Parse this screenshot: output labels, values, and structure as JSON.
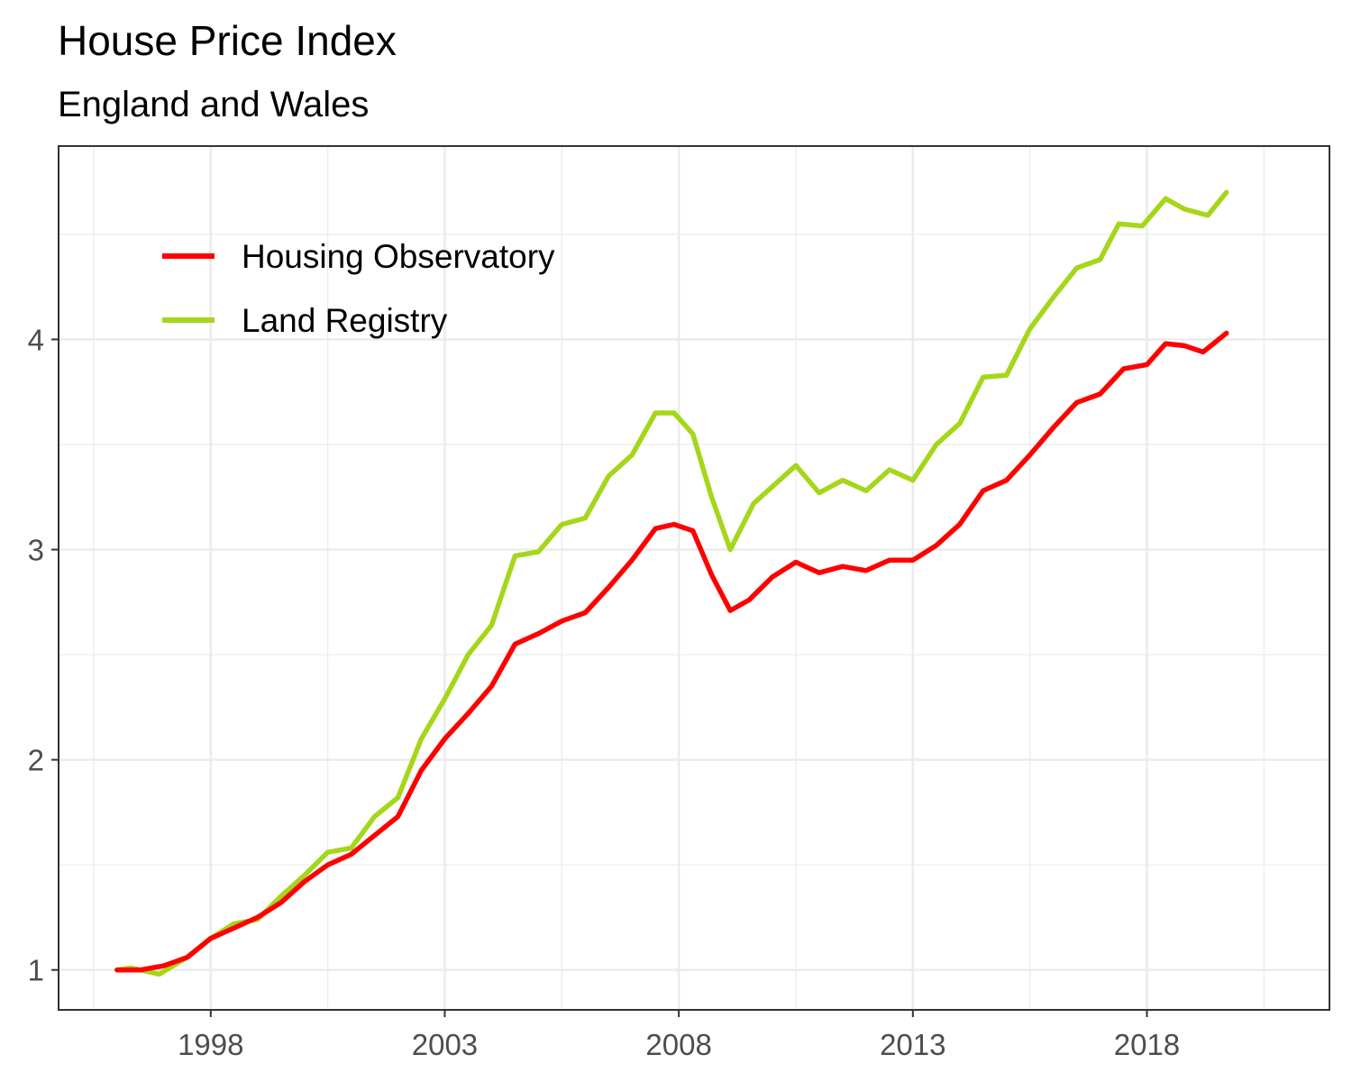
{
  "chart_data": {
    "type": "line",
    "title": "House Price Index",
    "subtitle": "England and Wales",
    "xlabel": "",
    "ylabel": "",
    "xlim": [
      1994.75,
      2021.9
    ],
    "ylim": [
      0.81,
      4.92
    ],
    "x_ticks": [
      "1998",
      "2003",
      "2008",
      "2013",
      "2018"
    ],
    "y_ticks": [
      "1",
      "2",
      "3",
      "4"
    ],
    "grid": true,
    "legend_position": "top-left",
    "colors": {
      "housing": "#ff0000",
      "land": "#a6d61a"
    },
    "series": [
      {
        "name": "Housing Observatory",
        "color": "#ff0000",
        "points": [
          [
            1996.0,
            1.0
          ],
          [
            1996.5,
            1.0
          ],
          [
            1997.0,
            1.02
          ],
          [
            1997.5,
            1.06
          ],
          [
            1998.0,
            1.15
          ],
          [
            1998.5,
            1.2
          ],
          [
            1999.0,
            1.25
          ],
          [
            1999.5,
            1.32
          ],
          [
            2000.0,
            1.42
          ],
          [
            2000.5,
            1.5
          ],
          [
            2001.0,
            1.55
          ],
          [
            2001.5,
            1.64
          ],
          [
            2002.0,
            1.73
          ],
          [
            2002.5,
            1.95
          ],
          [
            2003.0,
            2.1
          ],
          [
            2003.5,
            2.22
          ],
          [
            2004.0,
            2.35
          ],
          [
            2004.5,
            2.55
          ],
          [
            2005.0,
            2.6
          ],
          [
            2005.5,
            2.66
          ],
          [
            2006.0,
            2.7
          ],
          [
            2006.5,
            2.82
          ],
          [
            2007.0,
            2.95
          ],
          [
            2007.5,
            3.1
          ],
          [
            2007.9,
            3.12
          ],
          [
            2008.3,
            3.09
          ],
          [
            2008.7,
            2.88
          ],
          [
            2009.1,
            2.71
          ],
          [
            2009.5,
            2.76
          ],
          [
            2010.0,
            2.87
          ],
          [
            2010.5,
            2.94
          ],
          [
            2011.0,
            2.89
          ],
          [
            2011.5,
            2.92
          ],
          [
            2012.0,
            2.9
          ],
          [
            2012.5,
            2.95
          ],
          [
            2013.0,
            2.95
          ],
          [
            2013.5,
            3.02
          ],
          [
            2014.0,
            3.12
          ],
          [
            2014.5,
            3.28
          ],
          [
            2015.0,
            3.33
          ],
          [
            2015.5,
            3.45
          ],
          [
            2016.0,
            3.58
          ],
          [
            2016.5,
            3.7
          ],
          [
            2017.0,
            3.74
          ],
          [
            2017.5,
            3.86
          ],
          [
            2018.0,
            3.88
          ],
          [
            2018.4,
            3.98
          ],
          [
            2018.8,
            3.97
          ],
          [
            2019.2,
            3.94
          ],
          [
            2019.7,
            4.03
          ]
        ]
      },
      {
        "name": "Land Registry",
        "color": "#a6d61a",
        "points": [
          [
            1996.0,
            1.0
          ],
          [
            1996.3,
            1.01
          ],
          [
            1996.9,
            0.98
          ],
          [
            1997.5,
            1.06
          ],
          [
            1998.0,
            1.15
          ],
          [
            1998.5,
            1.22
          ],
          [
            1999.0,
            1.24
          ],
          [
            1999.5,
            1.35
          ],
          [
            2000.0,
            1.45
          ],
          [
            2000.5,
            1.56
          ],
          [
            2001.0,
            1.58
          ],
          [
            2001.5,
            1.73
          ],
          [
            2002.0,
            1.82
          ],
          [
            2002.5,
            2.1
          ],
          [
            2003.0,
            2.29
          ],
          [
            2003.5,
            2.5
          ],
          [
            2004.0,
            2.64
          ],
          [
            2004.5,
            2.97
          ],
          [
            2005.0,
            2.99
          ],
          [
            2005.5,
            3.12
          ],
          [
            2006.0,
            3.15
          ],
          [
            2006.5,
            3.35
          ],
          [
            2007.0,
            3.45
          ],
          [
            2007.5,
            3.65
          ],
          [
            2007.9,
            3.65
          ],
          [
            2008.3,
            3.55
          ],
          [
            2008.7,
            3.25
          ],
          [
            2009.1,
            3.0
          ],
          [
            2009.6,
            3.22
          ],
          [
            2010.0,
            3.3
          ],
          [
            2010.5,
            3.4
          ],
          [
            2011.0,
            3.27
          ],
          [
            2011.5,
            3.33
          ],
          [
            2012.0,
            3.28
          ],
          [
            2012.5,
            3.38
          ],
          [
            2013.0,
            3.33
          ],
          [
            2013.5,
            3.5
          ],
          [
            2014.0,
            3.6
          ],
          [
            2014.5,
            3.82
          ],
          [
            2015.0,
            3.83
          ],
          [
            2015.5,
            4.05
          ],
          [
            2016.0,
            4.2
          ],
          [
            2016.5,
            4.34
          ],
          [
            2017.0,
            4.38
          ],
          [
            2017.4,
            4.55
          ],
          [
            2017.9,
            4.54
          ],
          [
            2018.4,
            4.67
          ],
          [
            2018.8,
            4.62
          ],
          [
            2019.3,
            4.59
          ],
          [
            2019.7,
            4.7
          ]
        ]
      }
    ]
  }
}
